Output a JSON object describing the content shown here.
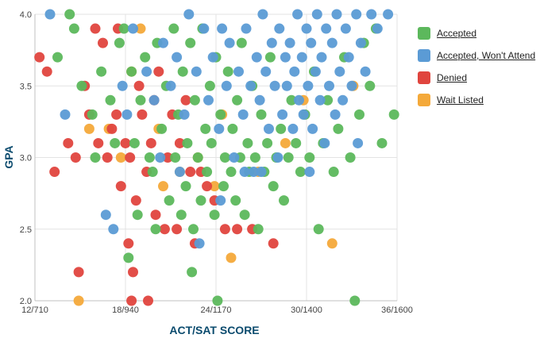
{
  "chart_data": {
    "type": "scatter",
    "xlabel": "ACT/SAT SCORE",
    "ylabel": "GPA",
    "x_ticks": [
      {
        "value": 12,
        "label": "12/710"
      },
      {
        "value": 18,
        "label": "18/940"
      },
      {
        "value": 24,
        "label": "24/1170"
      },
      {
        "value": 30,
        "label": "30/1400"
      },
      {
        "value": 36,
        "label": "36/1600"
      }
    ],
    "y_ticks": [
      {
        "value": 2.0,
        "label": "2.0"
      },
      {
        "value": 2.5,
        "label": "2.5"
      },
      {
        "value": 3.0,
        "label": "3.0"
      },
      {
        "value": 3.5,
        "label": "3.5"
      },
      {
        "value": 4.0,
        "label": "4.0"
      }
    ],
    "xlim": [
      12,
      36
    ],
    "ylim": [
      2.0,
      4.0
    ],
    "grid": true,
    "legend_position": "right",
    "series": [
      {
        "name": "Accepted",
        "color": "#5cb85c",
        "points": [
          [
            13.5,
            3.7
          ],
          [
            14.3,
            4.0
          ],
          [
            14.6,
            3.9
          ],
          [
            15.1,
            3.5
          ],
          [
            15.8,
            3.3
          ],
          [
            16.4,
            3.6
          ],
          [
            17.0,
            3.4
          ],
          [
            17.6,
            3.8
          ],
          [
            17.9,
            3.9
          ],
          [
            18.4,
            3.6
          ],
          [
            18.2,
            2.3
          ],
          [
            18.6,
            3.1
          ],
          [
            19.0,
            3.4
          ],
          [
            19.3,
            3.7
          ],
          [
            19.6,
            3.0
          ],
          [
            19.8,
            2.9
          ],
          [
            20.1,
            3.8
          ],
          [
            20.4,
            3.2
          ],
          [
            20.7,
            3.5
          ],
          [
            20.9,
            2.7
          ],
          [
            21.2,
            3.9
          ],
          [
            21.3,
            3.0
          ],
          [
            21.5,
            3.3
          ],
          [
            21.7,
            2.6
          ],
          [
            21.8,
            3.6
          ],
          [
            22.0,
            2.8
          ],
          [
            22.1,
            3.1
          ],
          [
            22.3,
            3.8
          ],
          [
            22.5,
            2.5
          ],
          [
            22.6,
            3.4
          ],
          [
            22.8,
            3.0
          ],
          [
            23.0,
            2.7
          ],
          [
            23.1,
            3.9
          ],
          [
            23.3,
            3.2
          ],
          [
            23.4,
            2.9
          ],
          [
            23.6,
            3.5
          ],
          [
            23.7,
            3.1
          ],
          [
            23.9,
            2.6
          ],
          [
            24.0,
            3.7
          ],
          [
            24.1,
            2.0
          ],
          [
            24.3,
            3.3
          ],
          [
            24.5,
            2.8
          ],
          [
            24.6,
            3.0
          ],
          [
            24.8,
            3.6
          ],
          [
            25.0,
            2.9
          ],
          [
            25.1,
            3.2
          ],
          [
            25.3,
            2.7
          ],
          [
            25.4,
            3.4
          ],
          [
            25.6,
            3.0
          ],
          [
            25.7,
            3.8
          ],
          [
            25.9,
            2.6
          ],
          [
            26.1,
            3.1
          ],
          [
            26.2,
            2.9
          ],
          [
            26.4,
            3.5
          ],
          [
            26.6,
            3.0
          ],
          [
            26.8,
            2.5
          ],
          [
            27.0,
            3.3
          ],
          [
            27.2,
            2.9
          ],
          [
            27.4,
            3.1
          ],
          [
            27.6,
            3.7
          ],
          [
            27.8,
            2.8
          ],
          [
            28.0,
            3.0
          ],
          [
            28.3,
            3.2
          ],
          [
            28.5,
            2.7
          ],
          [
            28.8,
            3.0
          ],
          [
            29.0,
            3.4
          ],
          [
            29.3,
            3.1
          ],
          [
            29.6,
            2.9
          ],
          [
            29.9,
            3.3
          ],
          [
            30.2,
            3.0
          ],
          [
            30.5,
            3.6
          ],
          [
            30.8,
            2.5
          ],
          [
            31.1,
            3.1
          ],
          [
            31.4,
            3.4
          ],
          [
            31.8,
            2.9
          ],
          [
            32.1,
            3.2
          ],
          [
            32.5,
            3.7
          ],
          [
            32.9,
            3.0
          ],
          [
            33.2,
            2.0
          ],
          [
            33.5,
            3.3
          ],
          [
            33.8,
            3.8
          ],
          [
            34.2,
            3.5
          ],
          [
            34.6,
            3.9
          ],
          [
            35.0,
            3.1
          ],
          [
            35.8,
            3.3
          ],
          [
            16.0,
            3.0
          ],
          [
            17.3,
            3.1
          ],
          [
            18.8,
            2.6
          ],
          [
            20.0,
            2.5
          ],
          [
            22.4,
            2.2
          ]
        ]
      },
      {
        "name": "Accepted, Won't Attend",
        "color": "#5b9bd5",
        "points": [
          [
            13.0,
            4.0
          ],
          [
            14.0,
            3.3
          ],
          [
            16.7,
            2.6
          ],
          [
            17.2,
            2.5
          ],
          [
            17.8,
            3.5
          ],
          [
            18.5,
            3.9
          ],
          [
            19.4,
            3.6
          ],
          [
            19.9,
            3.4
          ],
          [
            20.5,
            3.8
          ],
          [
            21.0,
            3.5
          ],
          [
            21.4,
            3.7
          ],
          [
            21.9,
            3.3
          ],
          [
            22.2,
            4.0
          ],
          [
            22.7,
            3.6
          ],
          [
            22.9,
            2.4
          ],
          [
            23.2,
            3.9
          ],
          [
            23.5,
            3.4
          ],
          [
            23.8,
            3.7
          ],
          [
            24.2,
            3.2
          ],
          [
            24.4,
            3.9
          ],
          [
            24.7,
            3.5
          ],
          [
            24.9,
            3.8
          ],
          [
            25.2,
            3.0
          ],
          [
            25.5,
            3.6
          ],
          [
            25.8,
            3.3
          ],
          [
            26.0,
            3.9
          ],
          [
            26.3,
            3.5
          ],
          [
            26.5,
            2.9
          ],
          [
            26.7,
            3.7
          ],
          [
            26.9,
            3.4
          ],
          [
            27.1,
            4.0
          ],
          [
            27.3,
            3.6
          ],
          [
            27.5,
            3.2
          ],
          [
            27.7,
            3.8
          ],
          [
            27.9,
            3.5
          ],
          [
            28.1,
            3.0
          ],
          [
            28.2,
            3.9
          ],
          [
            28.4,
            3.3
          ],
          [
            28.6,
            3.7
          ],
          [
            28.7,
            3.5
          ],
          [
            28.9,
            3.8
          ],
          [
            29.1,
            3.2
          ],
          [
            29.2,
            3.6
          ],
          [
            29.4,
            4.0
          ],
          [
            29.5,
            3.4
          ],
          [
            29.7,
            3.7
          ],
          [
            29.8,
            3.3
          ],
          [
            30.0,
            3.9
          ],
          [
            30.1,
            3.5
          ],
          [
            30.3,
            3.8
          ],
          [
            30.4,
            3.2
          ],
          [
            30.6,
            3.6
          ],
          [
            30.7,
            4.0
          ],
          [
            30.9,
            3.4
          ],
          [
            31.0,
            3.7
          ],
          [
            31.2,
            3.1
          ],
          [
            31.3,
            3.9
          ],
          [
            31.5,
            3.5
          ],
          [
            31.7,
            3.8
          ],
          [
            31.9,
            3.3
          ],
          [
            32.0,
            4.0
          ],
          [
            32.2,
            3.6
          ],
          [
            32.4,
            3.4
          ],
          [
            32.6,
            3.9
          ],
          [
            32.8,
            3.7
          ],
          [
            33.0,
            3.5
          ],
          [
            33.3,
            4.0
          ],
          [
            33.6,
            3.8
          ],
          [
            33.9,
            3.6
          ],
          [
            34.3,
            4.0
          ],
          [
            34.7,
            3.9
          ],
          [
            35.4,
            4.0
          ],
          [
            33.4,
            3.1
          ],
          [
            30.2,
            2.9
          ],
          [
            27.0,
            2.9
          ],
          [
            25.9,
            2.9
          ],
          [
            24.3,
            2.7
          ],
          [
            21.6,
            2.9
          ],
          [
            20.3,
            3.0
          ],
          [
            18.1,
            3.3
          ]
        ]
      },
      {
        "name": "Denied",
        "color": "#e0453e",
        "points": [
          [
            12.3,
            3.7
          ],
          [
            12.8,
            3.6
          ],
          [
            13.3,
            2.9
          ],
          [
            14.2,
            3.1
          ],
          [
            14.7,
            3.0
          ],
          [
            14.9,
            2.2
          ],
          [
            15.3,
            3.5
          ],
          [
            15.6,
            3.3
          ],
          [
            16.2,
            3.1
          ],
          [
            16.5,
            3.8
          ],
          [
            16.8,
            3.0
          ],
          [
            17.1,
            3.2
          ],
          [
            17.5,
            3.9
          ],
          [
            17.7,
            2.8
          ],
          [
            18.0,
            3.1
          ],
          [
            18.2,
            2.4
          ],
          [
            18.3,
            3.0
          ],
          [
            18.5,
            2.2
          ],
          [
            18.7,
            2.7
          ],
          [
            18.9,
            3.5
          ],
          [
            19.1,
            3.3
          ],
          [
            19.4,
            2.9
          ],
          [
            19.5,
            2.0
          ],
          [
            19.7,
            3.1
          ],
          [
            20.0,
            2.6
          ],
          [
            20.2,
            3.6
          ],
          [
            20.6,
            2.5
          ],
          [
            20.8,
            3.0
          ],
          [
            21.1,
            3.3
          ],
          [
            21.4,
            2.5
          ],
          [
            21.6,
            3.1
          ],
          [
            22.0,
            3.4
          ],
          [
            22.3,
            2.9
          ],
          [
            22.6,
            2.4
          ],
          [
            23.0,
            2.9
          ],
          [
            23.4,
            2.8
          ],
          [
            23.9,
            2.7
          ],
          [
            24.6,
            2.5
          ],
          [
            25.4,
            2.5
          ],
          [
            26.4,
            2.5
          ],
          [
            16.0,
            3.9
          ],
          [
            17.4,
            3.3
          ],
          [
            19.9,
            3.4
          ],
          [
            27.8,
            2.4
          ],
          [
            18.4,
            2.0
          ]
        ]
      },
      {
        "name": "Wait Listed",
        "color": "#f4a93a",
        "points": [
          [
            14.9,
            2.0
          ],
          [
            15.6,
            3.2
          ],
          [
            16.9,
            3.2
          ],
          [
            17.7,
            3.0
          ],
          [
            18.4,
            3.6
          ],
          [
            19.0,
            3.9
          ],
          [
            20.2,
            3.2
          ],
          [
            21.6,
            2.9
          ],
          [
            22.8,
            3.0
          ],
          [
            23.9,
            2.8
          ],
          [
            25.0,
            2.3
          ],
          [
            26.8,
            2.9
          ],
          [
            28.6,
            3.1
          ],
          [
            31.7,
            2.4
          ],
          [
            33.1,
            3.5
          ],
          [
            29.8,
            3.4
          ],
          [
            24.4,
            3.3
          ],
          [
            20.5,
            2.8
          ]
        ]
      }
    ]
  }
}
